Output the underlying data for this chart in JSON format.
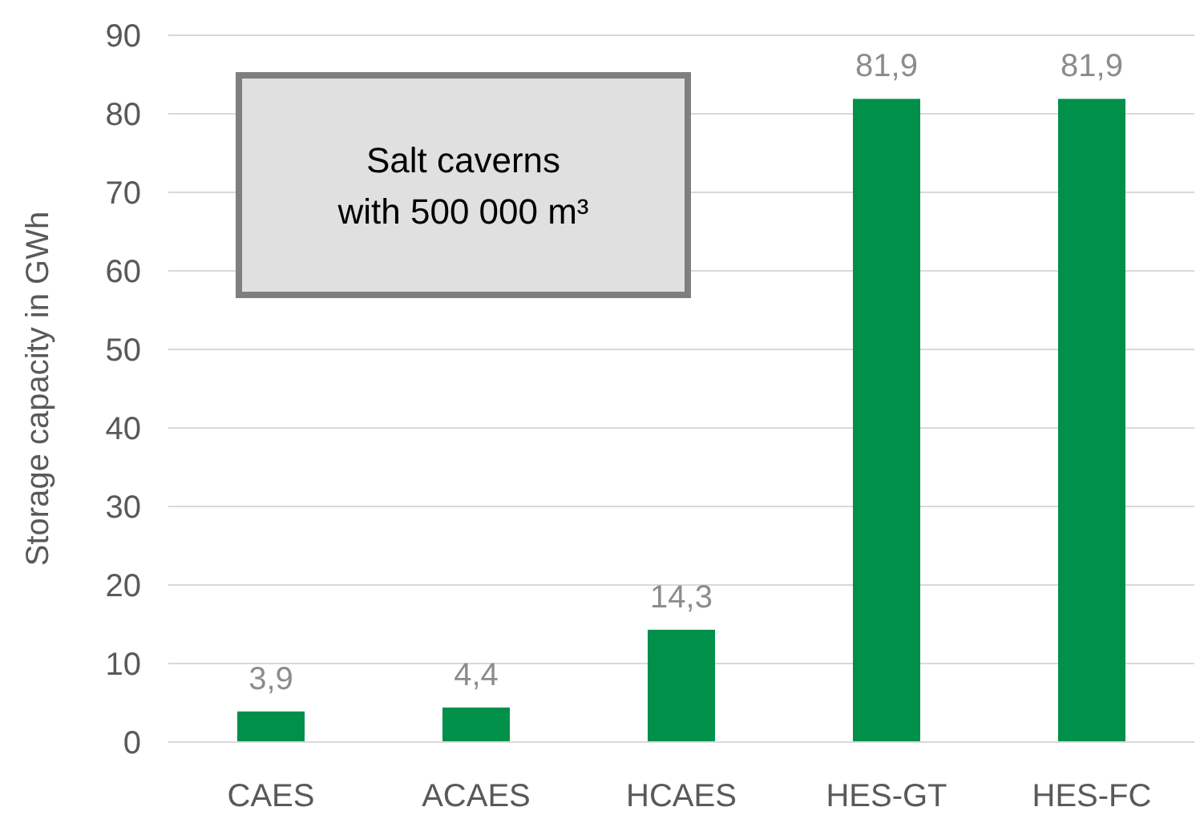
{
  "chart_data": {
    "type": "bar",
    "ylabel": "Storage capacity in GWh",
    "categories": [
      "CAES",
      "ACAES",
      "HCAES",
      "HES-GT",
      "HES-FC"
    ],
    "values": [
      3.9,
      4.4,
      14.3,
      81.9,
      81.9
    ],
    "value_labels": [
      "3,9",
      "4,4",
      "14,3",
      "81,9",
      "81,9"
    ],
    "color": "#00904a",
    "ylim": [
      0,
      90
    ],
    "yticks": [
      0,
      10,
      20,
      30,
      40,
      50,
      60,
      70,
      80,
      90
    ],
    "grid": "y",
    "annotations": [
      "Salt caverns\nwith 500 000 m³"
    ]
  }
}
